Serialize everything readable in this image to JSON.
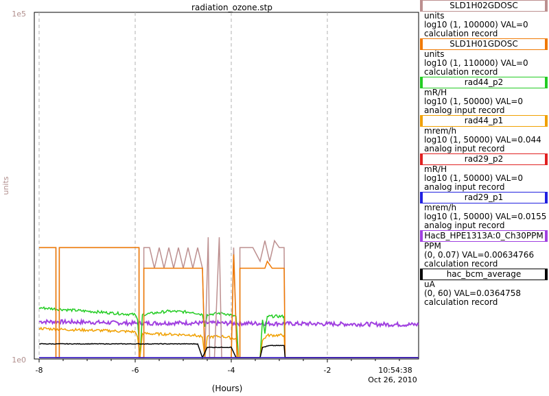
{
  "chart_data": {
    "type": "line",
    "title": "radiation_ozone.stp",
    "xlabel": "(Hours)",
    "ylabel": "units",
    "xlim": [
      -8.1,
      -0.1
    ],
    "ylim_labels": {
      "top": "1e5",
      "bottom": "1e0"
    },
    "x_ticks": [
      -8,
      -6,
      -4,
      -2
    ],
    "x_tick_labels": [
      "-8",
      "-6",
      "-4",
      "-2"
    ],
    "end_time": "10:54:38",
    "end_date": "Oct 26, 2010",
    "grid": true,
    "legend_placement": "right",
    "series": [
      {
        "name": "SLD1H02GDOSC",
        "units": "units",
        "range": "log10 (1, 100000) VAL=0",
        "record": "calculation record",
        "color": "#bc8f8f",
        "points": [
          [
            -8.0,
            0.32
          ],
          [
            -7.65,
            0.32
          ],
          [
            -7.65,
            0.0
          ],
          [
            -7.58,
            0.0
          ],
          [
            -7.58,
            0.32
          ],
          [
            -5.92,
            0.32
          ],
          [
            -5.92,
            0.0
          ],
          [
            -5.82,
            0.0
          ],
          [
            -5.82,
            0.32
          ],
          [
            -5.7,
            0.32
          ],
          [
            -5.6,
            0.26
          ],
          [
            -5.5,
            0.32
          ],
          [
            -5.4,
            0.26
          ],
          [
            -5.3,
            0.32
          ],
          [
            -5.2,
            0.26
          ],
          [
            -5.1,
            0.32
          ],
          [
            -5.0,
            0.26
          ],
          [
            -4.9,
            0.32
          ],
          [
            -4.8,
            0.26
          ],
          [
            -4.7,
            0.32
          ],
          [
            -4.6,
            0.26
          ],
          [
            -4.55,
            0.0
          ],
          [
            -4.48,
            0.35
          ],
          [
            -4.45,
            0.0
          ],
          [
            -4.35,
            0.0
          ],
          [
            -4.25,
            0.35
          ],
          [
            -4.2,
            0.0
          ],
          [
            -4.0,
            0.0
          ],
          [
            -3.95,
            0.32
          ],
          [
            -3.88,
            0.0
          ],
          [
            -3.82,
            0.0
          ],
          [
            -3.82,
            0.32
          ],
          [
            -3.55,
            0.32
          ],
          [
            -3.4,
            0.28
          ],
          [
            -3.3,
            0.34
          ],
          [
            -3.2,
            0.28
          ],
          [
            -3.1,
            0.34
          ],
          [
            -3.0,
            0.32
          ],
          [
            -2.9,
            0.32
          ],
          [
            -2.88,
            0.0
          ],
          [
            -0.1,
            0.0
          ]
        ]
      },
      {
        "name": "SLD1H01GDOSC",
        "units": "units",
        "range": "log10 (1, 110000) VAL=0",
        "record": "calculation record",
        "color": "#f07800",
        "points": [
          [
            -8.0,
            0.32
          ],
          [
            -7.65,
            0.32
          ],
          [
            -7.65,
            0.0
          ],
          [
            -7.58,
            0.0
          ],
          [
            -7.58,
            0.32
          ],
          [
            -5.92,
            0.32
          ],
          [
            -5.92,
            0.0
          ],
          [
            -5.82,
            0.0
          ],
          [
            -5.82,
            0.26
          ],
          [
            -4.6,
            0.26
          ],
          [
            -4.55,
            0.0
          ],
          [
            -4.45,
            0.0
          ],
          [
            -4.35,
            0.0
          ],
          [
            -4.0,
            0.0
          ],
          [
            -3.95,
            0.3
          ],
          [
            -3.88,
            0.0
          ],
          [
            -3.82,
            0.0
          ],
          [
            -3.82,
            0.26
          ],
          [
            -3.3,
            0.26
          ],
          [
            -3.25,
            0.28
          ],
          [
            -3.15,
            0.26
          ],
          [
            -2.9,
            0.26
          ],
          [
            -2.88,
            0.0
          ],
          [
            -0.1,
            0.0
          ]
        ]
      },
      {
        "name": "rad44_p2",
        "units": "mR/H",
        "range": "log10 (1, 50000) VAL=0",
        "record": "analog input record",
        "color": "#22cc22",
        "points": [
          [
            -8.0,
            0.145
          ],
          [
            -7.5,
            0.14
          ],
          [
            -7.0,
            0.135
          ],
          [
            -6.5,
            0.13
          ],
          [
            -6.0,
            0.125
          ],
          [
            -5.95,
            0.11
          ],
          [
            -5.9,
            0.0
          ],
          [
            -5.85,
            0.125
          ],
          [
            -5.3,
            0.135
          ],
          [
            -4.8,
            0.132
          ],
          [
            -4.6,
            0.125
          ],
          [
            -4.55,
            0.09
          ],
          [
            -4.5,
            0.125
          ],
          [
            -4.2,
            0.13
          ],
          [
            -3.9,
            0.12
          ],
          [
            -3.85,
            0.0
          ],
          [
            -3.4,
            0.0
          ],
          [
            -3.35,
            0.11
          ],
          [
            -3.3,
            0.07
          ],
          [
            -3.25,
            0.12
          ],
          [
            -2.9,
            0.12
          ],
          [
            -2.88,
            0.0
          ],
          [
            -0.1,
            0.0
          ]
        ]
      },
      {
        "name": "rad44_p1",
        "units": "mrem/h",
        "range": "log10 (1, 50000) VAL=0.044",
        "record": "analog input record",
        "color": "#f0a000",
        "points": [
          [
            -8.0,
            0.085
          ],
          [
            -7.5,
            0.082
          ],
          [
            -7.0,
            0.08
          ],
          [
            -6.5,
            0.078
          ],
          [
            -6.0,
            0.075
          ],
          [
            -5.95,
            0.06
          ],
          [
            -5.9,
            0.0
          ],
          [
            -5.85,
            0.07
          ],
          [
            -5.3,
            0.068
          ],
          [
            -4.8,
            0.066
          ],
          [
            -4.6,
            0.06
          ],
          [
            -4.55,
            0.0
          ],
          [
            -4.5,
            0.06
          ],
          [
            -4.2,
            0.062
          ],
          [
            -3.9,
            0.055
          ],
          [
            -3.85,
            0.0
          ],
          [
            -3.4,
            0.0
          ],
          [
            -3.35,
            0.05
          ],
          [
            -3.25,
            0.065
          ],
          [
            -2.9,
            0.065
          ],
          [
            -2.88,
            0.0
          ],
          [
            -0.1,
            0.0
          ]
        ]
      },
      {
        "name": "rad29_p2",
        "units": "mR/H",
        "range": "log10 (1, 50000) VAL=0",
        "record": "analog input record",
        "color": "#e02020",
        "points": [
          [
            -8.0,
            0.0
          ],
          [
            -0.1,
            0.0
          ]
        ]
      },
      {
        "name": "rad29_p1",
        "units": "mrem/h",
        "range": "log10 (1, 50000) VAL=0.0155",
        "record": "analog input record",
        "color": "#2020e0",
        "points": [
          [
            -8.0,
            0.0
          ],
          [
            -0.1,
            0.0
          ]
        ]
      },
      {
        "name": "HacB_HPE1313A:0_Ch30PPM",
        "units": "PPM",
        "range": "(0, 0.07) VAL=0.00634766",
        "record": "calculation record",
        "color": "#a040e0",
        "points": [
          [
            -8.0,
            0.105
          ],
          [
            -7.0,
            0.103
          ],
          [
            -6.0,
            0.1
          ],
          [
            -5.0,
            0.101
          ],
          [
            -4.0,
            0.1
          ],
          [
            -3.0,
            0.099
          ],
          [
            -2.0,
            0.098
          ],
          [
            -1.0,
            0.097
          ],
          [
            -0.1,
            0.096
          ]
        ]
      },
      {
        "name": "hac_bcm_average",
        "units": "uA",
        "range": "(0, 60) VAL=0.0364758",
        "record": "calculation record",
        "color": "#000000",
        "points": [
          [
            -8.0,
            0.04
          ],
          [
            -4.7,
            0.04
          ],
          [
            -4.6,
            0.0
          ],
          [
            -4.5,
            0.03
          ],
          [
            -4.0,
            0.03
          ],
          [
            -3.9,
            0.0
          ],
          [
            -3.4,
            0.0
          ],
          [
            -3.35,
            0.03
          ],
          [
            -3.2,
            0.035
          ],
          [
            -2.9,
            0.035
          ],
          [
            -2.88,
            0.0
          ],
          [
            -0.1,
            0.0
          ]
        ]
      }
    ]
  }
}
